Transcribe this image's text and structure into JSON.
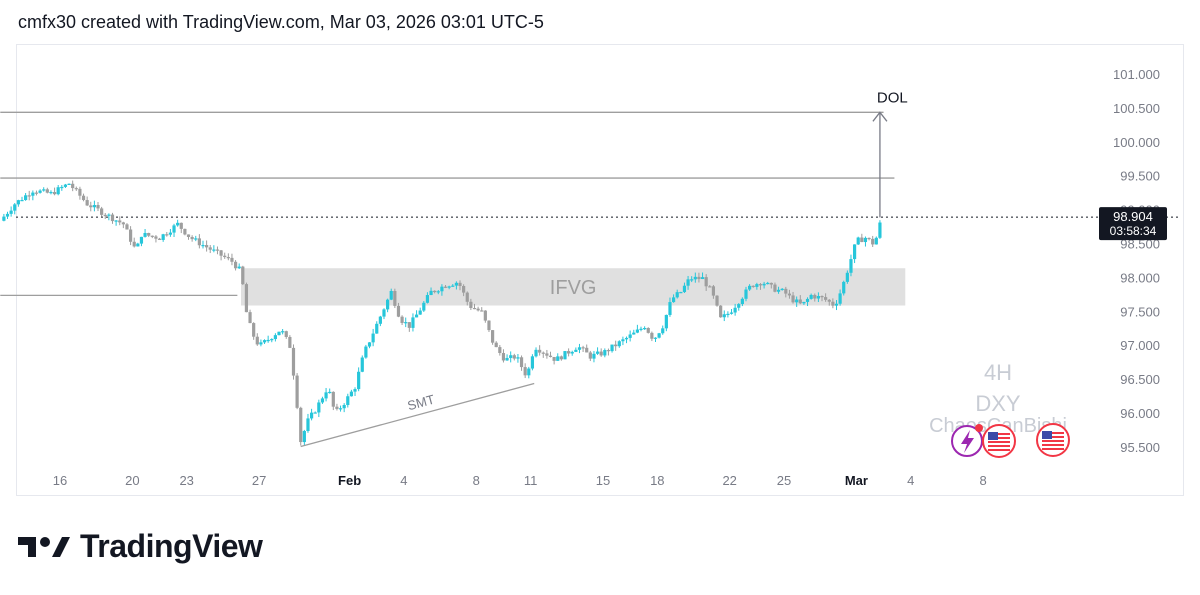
{
  "header": {
    "text": "cmfx30 created with TradingView.com, Mar 03, 2026 03:01 UTC-5"
  },
  "watermark": {
    "interval": "4H",
    "symbol": "DXY",
    "author": "ChaosCanBishi"
  },
  "brand": {
    "name": "TradingView"
  },
  "price_label": {
    "price": "98.904",
    "countdown": "03:58:34"
  },
  "colors": {
    "up": "#26c6da",
    "down": "#9e9e9e",
    "zone": "#e0e0e0",
    "line": "#9e9e9e",
    "label_bg": "#131722"
  },
  "icons": [
    "lightning-icon",
    "us-flag-icon",
    "us-flag-icon"
  ],
  "chart_data": {
    "type": "candlestick",
    "symbol": "DXY",
    "interval": "4H",
    "ylim": [
      95.2,
      101.3
    ],
    "y_ticks": [
      "101.000",
      "100.500",
      "100.000",
      "99.500",
      "99.000",
      "98.500",
      "98.000",
      "97.500",
      "97.000",
      "96.500",
      "96.000",
      "95.500"
    ],
    "y_tick_values": [
      101.0,
      100.5,
      100.0,
      99.5,
      99.0,
      98.5,
      98.0,
      97.5,
      97.0,
      96.5,
      96.0,
      95.5
    ],
    "x_ticks": [
      {
        "label": "16",
        "day": 16
      },
      {
        "label": "20",
        "day": 20
      },
      {
        "label": "23",
        "day": 23
      },
      {
        "label": "27",
        "day": 27
      },
      {
        "label": "Feb",
        "day": 32
      },
      {
        "label": "4",
        "day": 35
      },
      {
        "label": "8",
        "day": 39
      },
      {
        "label": "11",
        "day": 42
      },
      {
        "label": "15",
        "day": 46
      },
      {
        "label": "18",
        "day": 49
      },
      {
        "label": "22",
        "day": 53
      },
      {
        "label": "25",
        "day": 56
      },
      {
        "label": "Mar",
        "day": 60
      },
      {
        "label": "4",
        "day": 63
      },
      {
        "label": "8",
        "day": 67
      }
    ],
    "close_path": [
      [
        12.7,
        98.85
      ],
      [
        13.5,
        99.1
      ],
      [
        14.5,
        99.3
      ],
      [
        15.5,
        99.25
      ],
      [
        16.5,
        99.4
      ],
      [
        17.5,
        99.1
      ],
      [
        18.5,
        98.95
      ],
      [
        19.5,
        98.8
      ],
      [
        20.2,
        98.4
      ],
      [
        20.5,
        98.65
      ],
      [
        21.5,
        98.6
      ],
      [
        22.5,
        98.8
      ],
      [
        23.2,
        98.6
      ],
      [
        24.5,
        98.4
      ],
      [
        25.5,
        98.25
      ],
      [
        26.0,
        98.1
      ],
      [
        26.3,
        97.5
      ],
      [
        26.6,
        97.2
      ],
      [
        27.0,
        97.0
      ],
      [
        27.5,
        97.1
      ],
      [
        28.2,
        97.25
      ],
      [
        28.7,
        97.0
      ],
      [
        29.0,
        96.4
      ],
      [
        29.3,
        95.6
      ],
      [
        29.7,
        95.9
      ],
      [
        30.2,
        96.1
      ],
      [
        30.8,
        96.4
      ],
      [
        31.2,
        96.0
      ],
      [
        31.8,
        96.2
      ],
      [
        32.3,
        96.4
      ],
      [
        32.8,
        96.9
      ],
      [
        33.3,
        97.2
      ],
      [
        33.8,
        97.5
      ],
      [
        34.3,
        97.8
      ],
      [
        34.8,
        97.4
      ],
      [
        35.3,
        97.3
      ],
      [
        35.8,
        97.5
      ],
      [
        36.5,
        97.8
      ],
      [
        37.3,
        97.9
      ],
      [
        38.0,
        97.95
      ],
      [
        38.6,
        97.6
      ],
      [
        39.3,
        97.5
      ],
      [
        40.0,
        97.0
      ],
      [
        40.6,
        96.8
      ],
      [
        41.2,
        96.85
      ],
      [
        41.8,
        96.55
      ],
      [
        42.2,
        97.0
      ],
      [
        42.8,
        96.9
      ],
      [
        43.4,
        96.8
      ],
      [
        44.0,
        96.9
      ],
      [
        44.6,
        97.0
      ],
      [
        45.3,
        96.85
      ],
      [
        46.0,
        96.9
      ],
      [
        46.6,
        97.0
      ],
      [
        47.2,
        97.1
      ],
      [
        47.8,
        97.2
      ],
      [
        48.3,
        97.3
      ],
      [
        48.8,
        97.1
      ],
      [
        49.3,
        97.3
      ],
      [
        49.8,
        97.7
      ],
      [
        50.3,
        97.8
      ],
      [
        50.8,
        98.0
      ],
      [
        51.5,
        98.0
      ],
      [
        52.0,
        97.8
      ],
      [
        52.5,
        97.4
      ],
      [
        53.0,
        97.5
      ],
      [
        53.6,
        97.7
      ],
      [
        54.2,
        97.9
      ],
      [
        54.8,
        97.95
      ],
      [
        55.4,
        97.85
      ],
      [
        56.0,
        97.8
      ],
      [
        56.4,
        97.7
      ],
      [
        57.0,
        97.6
      ],
      [
        57.5,
        97.75
      ],
      [
        58.2,
        97.7
      ],
      [
        58.8,
        97.6
      ],
      [
        59.2,
        97.85
      ],
      [
        59.6,
        98.2
      ],
      [
        60.0,
        98.55
      ],
      [
        60.5,
        98.6
      ],
      [
        61.0,
        98.5
      ],
      [
        61.4,
        98.9
      ]
    ],
    "levels": [
      {
        "kind": "horizontal",
        "price": 100.45,
        "from_day": 12.7,
        "to_day": 61.5
      },
      {
        "kind": "horizontal",
        "price": 99.48,
        "from_day": 12.7,
        "to_day": 62.1
      },
      {
        "kind": "horizontal",
        "price": 97.75,
        "from_day": 12.7,
        "to_day": 25.8
      },
      {
        "kind": "current_price",
        "price": 98.904
      }
    ],
    "zones": [
      {
        "label": "IFVG",
        "from_price": 97.6,
        "to_price": 98.15,
        "from_day": 26.0,
        "to_day": 62.7
      }
    ],
    "arrows": [
      {
        "label": "DOL",
        "day": 61.3,
        "from_price": 98.9,
        "to_price": 100.45
      }
    ],
    "trendlines": [
      {
        "label": "SMT",
        "from": [
          29.3,
          95.52
        ],
        "to": [
          42.2,
          96.45
        ]
      }
    ]
  }
}
